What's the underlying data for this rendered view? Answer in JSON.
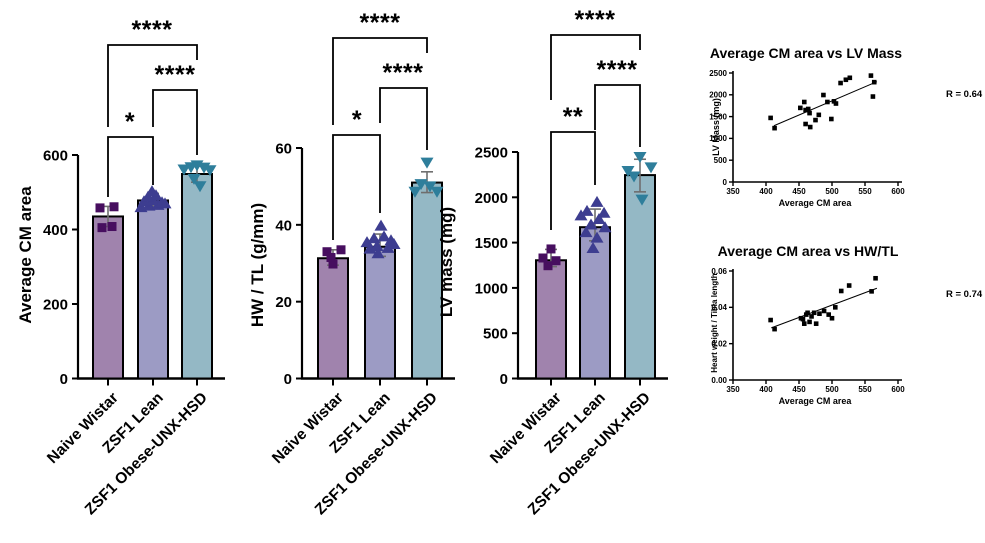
{
  "figure": {
    "background": "#ffffff"
  },
  "colors": {
    "bar_fills": [
      "#A083AD",
      "#9C9BC4",
      "#94B8C5"
    ],
    "bar_stroke": "#000000",
    "point_colors": [
      "#470E5F",
      "#3D3D90",
      "#2E7E9B"
    ],
    "error_bar": "#6E6E6E",
    "axis": "#000000",
    "scatter_point": "#000000"
  },
  "categories": [
    "Naive Wistar",
    "ZSF1 Lean",
    "ZSF1 Obese-UNX-HSD"
  ],
  "chart_data": [
    {
      "type": "bar",
      "id": "average-cm-area",
      "ylabel": "Average CM area",
      "ylim": [
        0,
        600
      ],
      "yticks": [
        "0",
        "200",
        "400",
        "600"
      ],
      "ytick_values": [
        0,
        200,
        400,
        600
      ],
      "categories": [
        "Naive Wistar",
        "ZSF1 Lean",
        "ZSF1 Obese-UNX-HSD"
      ],
      "group_markers": [
        "square",
        "triangle-up",
        "triangle-down"
      ],
      "bars": [
        {
          "category": "Naive Wistar",
          "mean": 435,
          "error": [
            408,
            462
          ],
          "points": [
            [
              -8,
              458
            ],
            [
              6,
              461
            ],
            [
              -6,
              405
            ],
            [
              4,
              408
            ]
          ]
        },
        {
          "category": "ZSF1 Lean",
          "mean": 478,
          "error": [
            458,
            497
          ],
          "points": [
            [
              -12,
              460
            ],
            [
              -4,
              464
            ],
            [
              5,
              466
            ],
            [
              12,
              470
            ],
            [
              -9,
              476
            ],
            [
              0,
              479
            ],
            [
              9,
              473
            ],
            [
              -5,
              488
            ],
            [
              3,
              492
            ],
            [
              -1,
              503
            ]
          ]
        },
        {
          "category": "ZSF1 Obese-UNX-HSD",
          "mean": 549,
          "error": [
            527,
            570
          ],
          "points": [
            [
              -13,
              561
            ],
            [
              -6,
              567
            ],
            [
              0,
              572
            ],
            [
              7,
              566
            ],
            [
              13,
              559
            ],
            [
              -3,
              536
            ],
            [
              3,
              516
            ]
          ]
        }
      ],
      "comparisons": [
        {
          "between": [
            "Naive Wistar",
            "ZSF1 Lean"
          ],
          "label": "*"
        },
        {
          "between": [
            "ZSF1 Lean",
            "ZSF1 Obese-UNX-HSD"
          ],
          "label": "****"
        },
        {
          "between": [
            "Naive Wistar",
            "ZSF1 Obese-UNX-HSD"
          ],
          "label": "****"
        }
      ]
    },
    {
      "type": "bar",
      "id": "hw-tl",
      "ylabel": "HW / TL (g/mm)",
      "ylim": [
        0,
        60
      ],
      "yticks": [
        "0",
        "20",
        "40",
        "60"
      ],
      "ytick_values": [
        0,
        20,
        40,
        60
      ],
      "categories": [
        "Naive Wistar",
        "ZSF1 Lean",
        "ZSF1 Obese-UNX-HSD"
      ],
      "group_markers": [
        "square",
        "triangle-up",
        "triangle-down"
      ],
      "bars": [
        {
          "category": "Naive Wistar",
          "mean": 31.3,
          "error": [
            29.5,
            33.5
          ],
          "points": [
            [
              -6,
              33
            ],
            [
              8,
              33.5
            ],
            [
              0,
              29.8
            ],
            [
              -2,
              31.5
            ]
          ]
        },
        {
          "category": "ZSF1 Lean",
          "mean": 34.3,
          "error": [
            31.8,
            37.6
          ],
          "points": [
            [
              1,
              39.8
            ],
            [
              -13,
              35.5
            ],
            [
              -6,
              36.5
            ],
            [
              4,
              37
            ],
            [
              11,
              36
            ],
            [
              -10,
              33.8
            ],
            [
              -3,
              34.5
            ],
            [
              8,
              34
            ],
            [
              14,
              35
            ],
            [
              -2,
              32.6
            ]
          ]
        },
        {
          "category": "ZSF1 Obese-UNX-HSD",
          "mean": 51,
          "error": [
            48.4,
            53.8
          ],
          "points": [
            [
              0,
              56.2
            ],
            [
              -6,
              50.6
            ],
            [
              3,
              50
            ],
            [
              -12,
              48.6
            ],
            [
              10,
              48.6
            ]
          ]
        }
      ],
      "comparisons": [
        {
          "between": [
            "Naive Wistar",
            "ZSF1 Lean"
          ],
          "label": "*"
        },
        {
          "between": [
            "ZSF1 Lean",
            "ZSF1 Obese-UNX-HSD"
          ],
          "label": "****"
        },
        {
          "between": [
            "Naive Wistar",
            "ZSF1 Obese-UNX-HSD"
          ],
          "label": "****"
        }
      ]
    },
    {
      "type": "bar",
      "id": "lv-mass",
      "ylabel": "LV mass (mg)",
      "ylim": [
        0,
        2500
      ],
      "yticks": [
        "0",
        "500",
        "1000",
        "1500",
        "2000",
        "2500"
      ],
      "ytick_values": [
        0,
        500,
        1000,
        1500,
        2000,
        2500
      ],
      "categories": [
        "Naive Wistar",
        "ZSF1 Lean",
        "ZSF1 Obese-UNX-HSD"
      ],
      "group_markers": [
        "square",
        "triangle-up",
        "triangle-down"
      ],
      "bars": [
        {
          "category": "Naive Wistar",
          "mean": 1305,
          "error": [
            1235,
            1425
          ],
          "points": [
            [
              0,
              1430
            ],
            [
              -8,
              1330
            ],
            [
              5,
              1300
            ],
            [
              -3,
              1245
            ]
          ]
        },
        {
          "category": "ZSF1 Lean",
          "mean": 1670,
          "error": [
            1520,
            1870
          ],
          "points": [
            [
              2,
              1950
            ],
            [
              -8,
              1850
            ],
            [
              9,
              1830
            ],
            [
              -14,
              1800
            ],
            [
              4,
              1760
            ],
            [
              -4,
              1700
            ],
            [
              10,
              1670
            ],
            [
              -9,
              1615
            ],
            [
              2,
              1555
            ],
            [
              -2,
              1440
            ]
          ]
        },
        {
          "category": "ZSF1 Obese-UNX-HSD",
          "mean": 2245,
          "error": [
            2060,
            2420
          ],
          "points": [
            [
              0,
              2445
            ],
            [
              -12,
              2290
            ],
            [
              11,
              2330
            ],
            [
              -6,
              2230
            ],
            [
              2,
              1975
            ]
          ]
        }
      ],
      "comparisons": [
        {
          "between": [
            "Naive Wistar",
            "ZSF1 Lean"
          ],
          "label": "**"
        },
        {
          "between": [
            "ZSF1 Lean",
            "ZSF1 Obese-UNX-HSD"
          ],
          "label": "****"
        },
        {
          "between": [
            "Naive Wistar",
            "ZSF1 Obese-UNX-HSD"
          ],
          "label": "****"
        }
      ]
    },
    {
      "type": "scatter",
      "id": "cm-area-vs-lv-mass",
      "title": "Average CM area vs LV Mass",
      "xlabel": "Average CM area",
      "ylabel": "LV Mass (mg)",
      "r_label": "R = 0.64",
      "xlim": [
        350,
        600
      ],
      "ylim": [
        0,
        2500
      ],
      "xticks": [
        "350",
        "400",
        "450",
        "500",
        "550",
        "600"
      ],
      "xtick_values": [
        350,
        400,
        450,
        500,
        550,
        600
      ],
      "yticks": [
        "0",
        "500",
        "1000",
        "1500",
        "2000",
        "2500"
      ],
      "ytick_values": [
        0,
        500,
        1000,
        1500,
        2000,
        2500
      ],
      "points": [
        [
          407,
          1470
        ],
        [
          413,
          1235
        ],
        [
          452,
          1700
        ],
        [
          458,
          1835
        ],
        [
          460,
          1650
        ],
        [
          464,
          1675
        ],
        [
          466,
          1580
        ],
        [
          460,
          1330
        ],
        [
          467,
          1260
        ],
        [
          475,
          1420
        ],
        [
          480,
          1540
        ],
        [
          487,
          1995
        ],
        [
          493,
          1835
        ],
        [
          499,
          1445
        ],
        [
          503,
          1850
        ],
        [
          506,
          1800
        ],
        [
          513,
          2270
        ],
        [
          521,
          2345
        ],
        [
          527,
          2390
        ],
        [
          559,
          2440
        ],
        [
          564,
          2290
        ],
        [
          562,
          1960
        ]
      ],
      "trend": [
        [
          412,
          1290
        ],
        [
          568,
          2300
        ]
      ]
    },
    {
      "type": "scatter",
      "id": "cm-area-vs-hw-tl",
      "title": "Average CM area vs HW/TL",
      "xlabel": "Average CM area",
      "ylabel": "Heart weight /  Tibia length",
      "r_label": "R = 0.74",
      "xlim": [
        350,
        600
      ],
      "ylim": [
        0,
        0.06
      ],
      "xticks": [
        "350",
        "400",
        "450",
        "500",
        "550",
        "600"
      ],
      "xtick_values": [
        350,
        400,
        450,
        500,
        550,
        600
      ],
      "yticks": [
        "0.00",
        "0.02",
        "0.04",
        "0.06"
      ],
      "ytick_values": [
        0,
        0.02,
        0.04,
        0.06
      ],
      "points": [
        [
          407,
          0.033
        ],
        [
          413,
          0.028
        ],
        [
          453,
          0.034
        ],
        [
          456,
          0.0335
        ],
        [
          458,
          0.031
        ],
        [
          461,
          0.036
        ],
        [
          463,
          0.037
        ],
        [
          466,
          0.032
        ],
        [
          469,
          0.035
        ],
        [
          473,
          0.037
        ],
        [
          476,
          0.031
        ],
        [
          481,
          0.0365
        ],
        [
          488,
          0.038
        ],
        [
          495,
          0.036
        ],
        [
          500,
          0.034
        ],
        [
          505,
          0.04
        ],
        [
          514,
          0.049
        ],
        [
          526,
          0.052
        ],
        [
          560,
          0.0488
        ],
        [
          566,
          0.056
        ]
      ],
      "trend": [
        [
          408,
          0.0287
        ],
        [
          568,
          0.0505
        ]
      ]
    }
  ]
}
